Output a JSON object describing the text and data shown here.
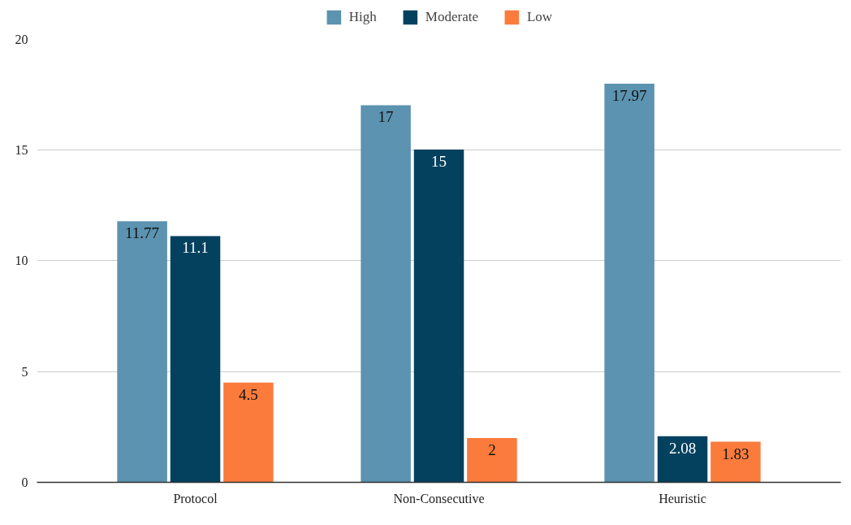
{
  "chart_data": {
    "type": "bar",
    "categories": [
      "Protocol",
      "Non-Consecutive",
      "Heuristic"
    ],
    "series": [
      {
        "name": "High",
        "color": "#5b93b0",
        "values": [
          11.77,
          17,
          17.97
        ]
      },
      {
        "name": "Moderate",
        "color": "#03415e",
        "values": [
          11.1,
          15,
          2.08
        ]
      },
      {
        "name": "Low",
        "color": "#fa7b3c",
        "values": [
          4.5,
          2,
          1.83
        ]
      }
    ],
    "ylim": [
      0,
      20
    ],
    "yticks": [
      0,
      5,
      10,
      15,
      20
    ],
    "grid": "y",
    "legend": "top",
    "data_labels": true
  }
}
